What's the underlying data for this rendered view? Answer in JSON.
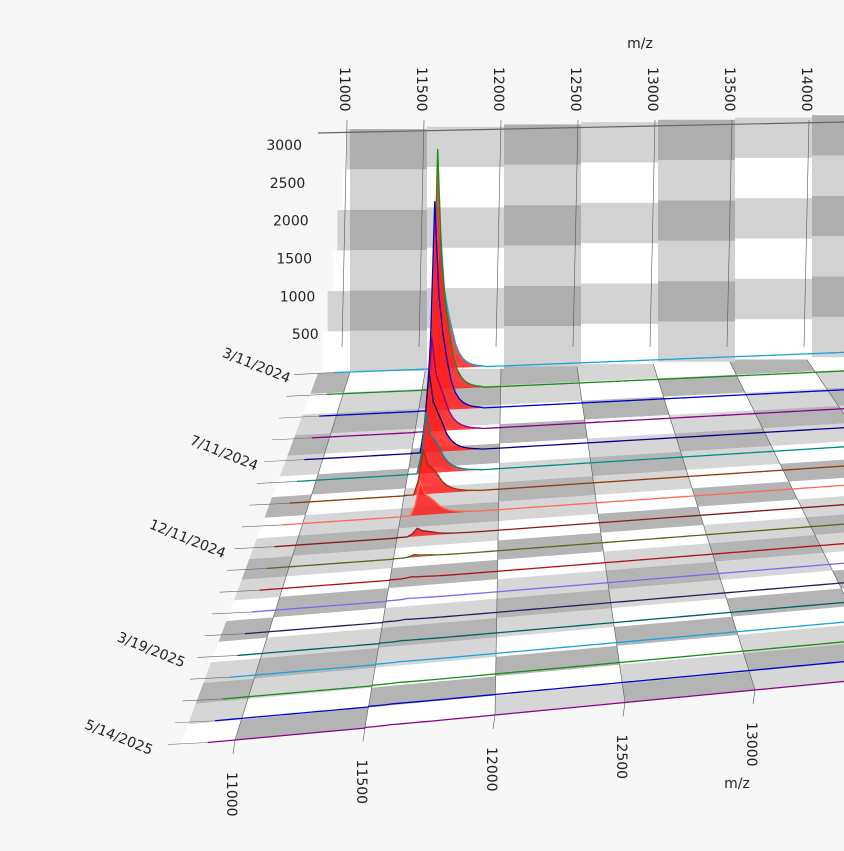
{
  "chart_data": {
    "type": "waterfall-3d",
    "x_axis_label": "m/z",
    "z_axis_label_top": "m/z",
    "x_ticks": [
      11000,
      11500,
      12000,
      12500,
      13000,
      13500,
      14000
    ],
    "x_ticks_front": [
      11000,
      11500,
      12000,
      12500,
      13000
    ],
    "y_ticks": [
      500,
      1000,
      1500,
      2000,
      2500,
      3000
    ],
    "ylim": [
      0,
      3000
    ],
    "date_labels": [
      "3/11/2024",
      "7/11/2024",
      "12/11/2024",
      "3/19/2025",
      "5/14/2025"
    ],
    "peak_mz": 11600,
    "series": [
      {
        "color": "#1aa3d6",
        "peak": 1650,
        "secondary": 420
      },
      {
        "color": "#1a8a1a",
        "peak": 3000,
        "secondary": 480
      },
      {
        "color": "#0000cc",
        "peak": 2600,
        "secondary": 450
      },
      {
        "color": "#8a008a",
        "peak": 1100,
        "secondary": 380
      },
      {
        "color": "#000088",
        "peak": 950,
        "secondary": 350
      },
      {
        "color": "#008b8b",
        "peak": 700,
        "secondary": 300
      },
      {
        "color": "#8b3a0a",
        "peak": 500,
        "secondary": 250
      },
      {
        "color": "#ff6a55",
        "peak": 380,
        "secondary": 160
      },
      {
        "color": "#8b1a1a",
        "peak": 90,
        "secondary": 40
      },
      {
        "color": "#4b6b1a",
        "peak": 30,
        "secondary": 15
      },
      {
        "color": "#b01010",
        "peak": 15,
        "secondary": 8
      },
      {
        "color": "#7b68ee",
        "peak": 10,
        "secondary": 5
      },
      {
        "color": "#202060",
        "peak": 8,
        "secondary": 4
      },
      {
        "color": "#006060",
        "peak": 6,
        "secondary": 3
      },
      {
        "color": "#1aa3d6",
        "peak": 5,
        "secondary": 3
      },
      {
        "color": "#1a8a1a",
        "peak": 5,
        "secondary": 2
      },
      {
        "color": "#0000cc",
        "peak": 4,
        "secondary": 2
      },
      {
        "color": "#8a008a",
        "peak": 4,
        "secondary": 2
      }
    ],
    "fill_color": "#ff2020",
    "grid": true
  }
}
